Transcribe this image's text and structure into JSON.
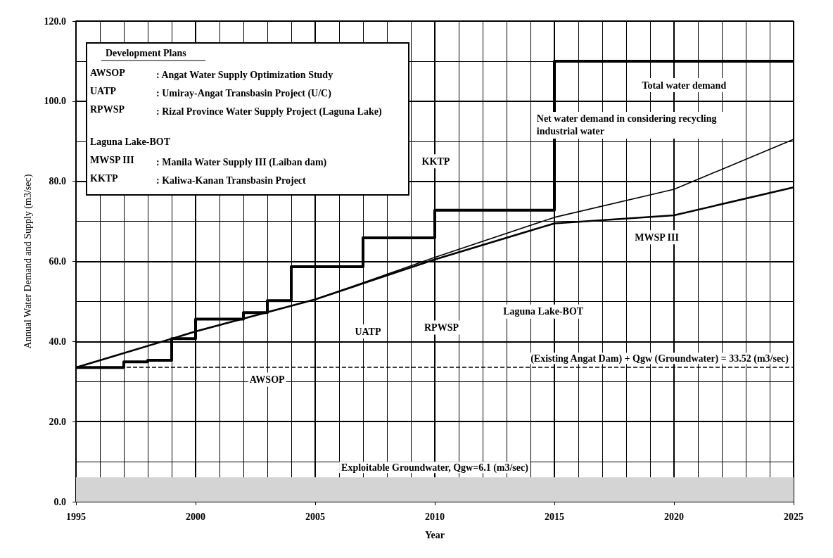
{
  "chart_data": {
    "type": "step",
    "xlabel": "Year",
    "ylabel": "Annual Water Demand and Supply (m3/sec)",
    "xlim": [
      1995,
      2025
    ],
    "xticks": [
      1995,
      2000,
      2005,
      2010,
      2015,
      2020,
      2025
    ],
    "ylim": [
      0,
      120
    ],
    "yticks": [
      {
        "value": 0,
        "label": "0.0"
      },
      {
        "value": 20,
        "label": "20.0"
      },
      {
        "value": 40,
        "label": "40.0"
      },
      {
        "value": 60,
        "label": "60.0"
      },
      {
        "value": 80,
        "label": "80.0"
      },
      {
        "value": 100,
        "label": "100.0"
      },
      {
        "value": 120,
        "label": "120.0"
      }
    ],
    "grid": true,
    "marker": "none",
    "series": [
      {
        "color": "#000000",
        "x": [
          1995,
          1997,
          1998,
          1999,
          2000,
          2002,
          2003,
          2004,
          2007,
          2010,
          2015,
          2025
        ],
        "values": [
          33.52,
          34.9,
          35.3,
          40.7,
          45.6,
          47.2,
          50.2,
          58.7,
          65.9,
          72.8,
          110,
          110
        ]
      },
      {
        "type": "line",
        "color": "#000000",
        "x": [
          1995,
          2000,
          2005,
          2010,
          2015,
          2020,
          2025
        ],
        "values": [
          33.5,
          42.5,
          50.5,
          61,
          71,
          78,
          90.5
        ]
      },
      {
        "type": "line",
        "color": "#000000",
        "x": [
          1995,
          2000,
          2005,
          2010,
          2015,
          2020,
          2025
        ],
        "values": [
          33.5,
          42.5,
          50.5,
          60.5,
          69.5,
          71.5,
          78.5
        ]
      }
    ],
    "ref_lines": [
      {
        "axis": "y",
        "value": 33.52,
        "label": "(Existing Angat Dam) + Qgw (Groundwater) = 33.52 (m3/sec)",
        "color": "#000000",
        "line_style": "dashed"
      }
    ],
    "bands": [
      {
        "axis": "y",
        "from": 0,
        "to": 6.1,
        "label": "Exploitable Groundwater, Qgw=6.1 (m3/sec)",
        "color": "#d4d4d4"
      }
    ],
    "annotations": [
      "Development Plans",
      "AWSOP : Angat Water Supply Optimization Study",
      "UATP : Umiray-Angat Transbasin Project (U/C)",
      "RPWSP : Rizal Province Water Supply Project (Laguna Lake)",
      "Laguna Lake-BOT",
      "MWSP III : Manila Water Supply III (Laiban dam)",
      "KKTP : Kaliwa-Kanan Transbasin Project",
      "KKTP",
      "MWSP III",
      "Laguna Lake-BOT",
      "RPWSP",
      "UATP",
      "AWSOP",
      "Total water demand",
      "Net water demand in considering recycling industrial water"
    ]
  }
}
